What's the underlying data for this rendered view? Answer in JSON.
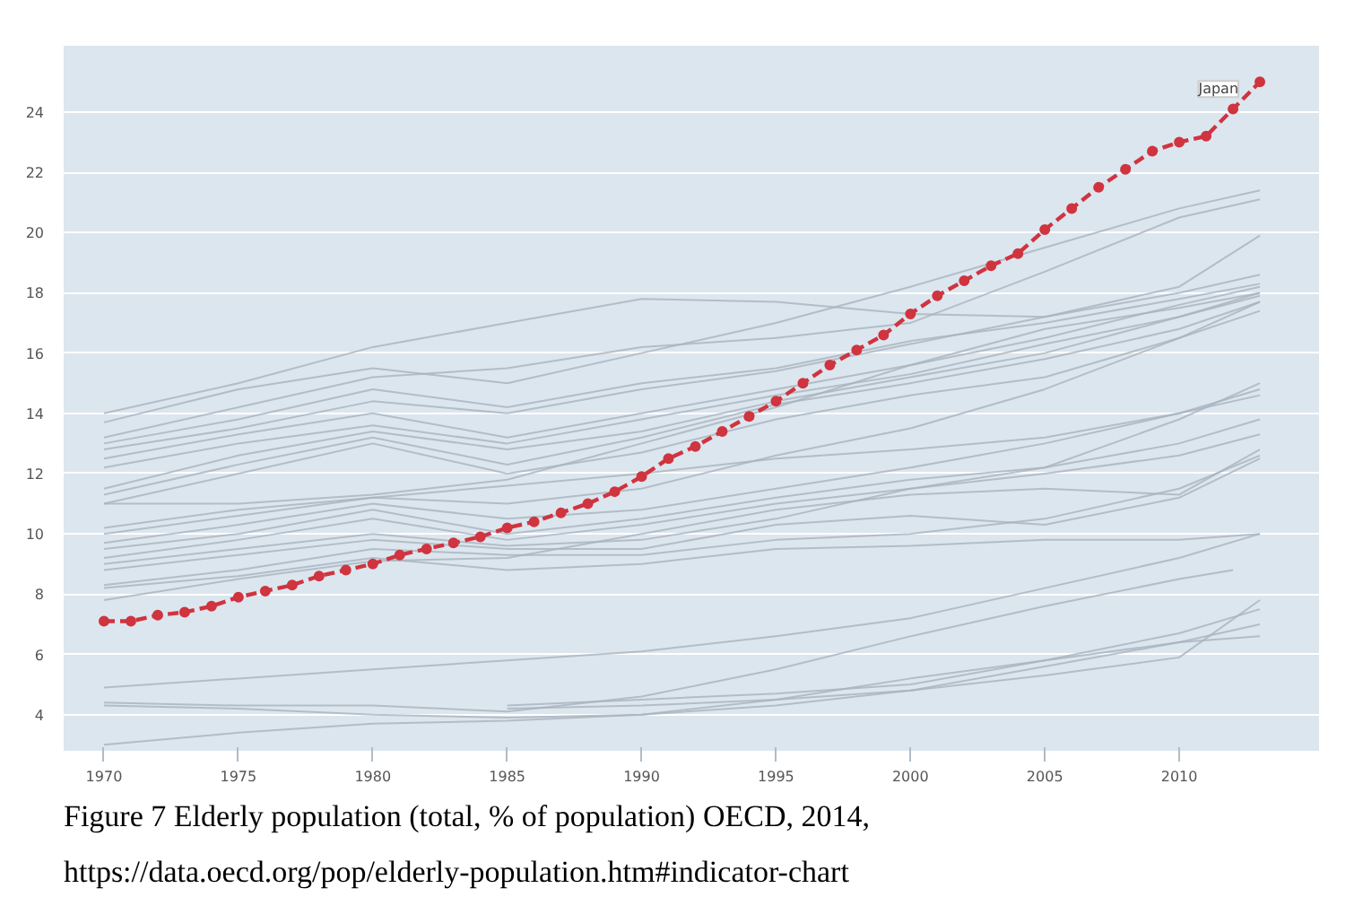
{
  "chart_data": {
    "type": "line",
    "xlim": [
      1968.5,
      2015.2
    ],
    "ylim": [
      2.8,
      26.2
    ],
    "xticks": [
      1970,
      1975,
      1980,
      1985,
      1990,
      1995,
      2000,
      2005,
      2010
    ],
    "yticks": [
      4,
      6,
      8,
      10,
      12,
      14,
      16,
      18,
      20,
      22,
      24
    ],
    "grid": "y",
    "annotations": [
      "Figure 7 Elderly population (total, % of population) OECD, 2014, https://data.oecd.org/pop/elderly-population.htm#indicator-chart"
    ],
    "series": [
      {
        "color": "#a7b3bd",
        "x": [
          1970,
          1975,
          1980,
          1985,
          1990,
          1995,
          2000,
          2005,
          2010,
          2013
        ],
        "values": [
          14.0,
          15.0,
          16.2,
          17.0,
          17.8,
          17.7,
          17.3,
          17.2,
          18.2,
          19.9
        ]
      },
      {
        "color": "#a7b3bd",
        "x": [
          1970,
          1975,
          1980,
          1985,
          1990,
          1995,
          2000,
          2005,
          2010,
          2013
        ],
        "values": [
          13.7,
          14.8,
          15.5,
          15.0,
          16.0,
          17.0,
          18.2,
          19.5,
          20.8,
          21.4
        ]
      },
      {
        "color": "#a7b3bd",
        "x": [
          1970,
          1975,
          1980,
          1985,
          1990,
          1995,
          2000,
          2005,
          2010,
          2013
        ],
        "values": [
          13.2,
          14.2,
          15.2,
          15.5,
          16.2,
          16.5,
          17.0,
          18.7,
          20.5,
          21.1
        ]
      },
      {
        "color": "#a7b3bd",
        "x": [
          1970,
          1975,
          1980,
          1985,
          1990,
          1995,
          2000,
          2005,
          2010,
          2013
        ],
        "values": [
          13.0,
          13.8,
          14.8,
          14.2,
          15.0,
          15.5,
          16.4,
          17.0,
          17.8,
          18.3
        ]
      },
      {
        "color": "#a7b3bd",
        "x": [
          1970,
          1975,
          1980,
          1985,
          1990,
          1995,
          2000,
          2005,
          2010,
          2013
        ],
        "values": [
          12.8,
          13.5,
          14.4,
          14.0,
          14.8,
          15.4,
          16.3,
          17.2,
          18.0,
          18.6
        ]
      },
      {
        "color": "#a7b3bd",
        "x": [
          1970,
          1975,
          1980,
          1985,
          1990,
          1995,
          2000,
          2005,
          2010,
          2013
        ],
        "values": [
          12.5,
          13.3,
          14.0,
          13.2,
          14.0,
          14.8,
          15.6,
          16.5,
          17.6,
          18.2
        ]
      },
      {
        "color": "#a7b3bd",
        "x": [
          1970,
          1975,
          1980,
          1985,
          1990,
          1995,
          2000,
          2005,
          2010,
          2013
        ],
        "values": [
          12.2,
          13.0,
          13.6,
          13.0,
          13.8,
          14.6,
          15.3,
          16.3,
          17.2,
          17.9
        ]
      },
      {
        "color": "#a7b3bd",
        "x": [
          1970,
          1975,
          1980,
          1985,
          1990,
          1995,
          2000,
          2005,
          2010,
          2013
        ],
        "values": [
          11.5,
          12.6,
          13.4,
          12.8,
          13.4,
          14.4,
          15.2,
          16.0,
          17.2,
          18.0
        ]
      },
      {
        "color": "#a7b3bd",
        "x": [
          1970,
          1975,
          1980,
          1985,
          1990,
          1995,
          2000,
          2005,
          2010,
          2013
        ],
        "values": [
          11.3,
          12.3,
          13.2,
          12.3,
          13.2,
          14.3,
          15.0,
          15.8,
          16.8,
          17.7
        ]
      },
      {
        "color": "#a7b3bd",
        "x": [
          1970,
          1975,
          1980,
          1985,
          1990,
          1995,
          2000,
          2005,
          2010,
          2013
        ],
        "values": [
          11.0,
          12.0,
          13.0,
          12.0,
          12.7,
          13.8,
          14.6,
          15.2,
          16.5,
          17.4
        ]
      },
      {
        "color": "#a7b3bd",
        "x": [
          1970,
          1975,
          1980,
          1985,
          1990,
          1995,
          2000,
          2005,
          2010,
          2013
        ],
        "values": [
          11.0,
          11.0,
          11.3,
          11.8,
          13.0,
          14.2,
          15.6,
          16.8,
          17.5,
          18.0
        ]
      },
      {
        "color": "#a7b3bd",
        "x": [
          1970,
          1975,
          1980,
          1985,
          1990,
          1995,
          2000,
          2005,
          2010,
          2013
        ],
        "values": [
          10.2,
          10.8,
          11.2,
          11.6,
          12.0,
          12.5,
          12.8,
          13.2,
          14.0,
          14.6
        ]
      },
      {
        "color": "#a7b3bd",
        "x": [
          1970,
          1975,
          1980,
          1985,
          1990,
          1995,
          2000,
          2005,
          2010,
          2013
        ],
        "values": [
          10.0,
          10.6,
          11.2,
          11.0,
          11.5,
          12.6,
          13.5,
          14.8,
          16.5,
          17.7
        ]
      },
      {
        "color": "#a7b3bd",
        "x": [
          1970,
          1975,
          1980,
          1985,
          1990,
          1995,
          2000,
          2005,
          2010,
          2013
        ],
        "values": [
          9.7,
          10.3,
          11.0,
          10.5,
          10.8,
          11.5,
          12.2,
          13.0,
          14.0,
          14.8
        ]
      },
      {
        "color": "#a7b3bd",
        "x": [
          1970,
          1975,
          1980,
          1985,
          1990,
          1995,
          2000,
          2005,
          2010,
          2013
        ],
        "values": [
          9.5,
          10.0,
          10.8,
          10.0,
          10.5,
          11.2,
          11.8,
          12.2,
          13.8,
          15.0
        ]
      },
      {
        "color": "#a7b3bd",
        "x": [
          1970,
          1975,
          1980,
          1985,
          1990,
          1995,
          2000,
          2005,
          2010,
          2013
        ],
        "values": [
          9.2,
          9.8,
          10.5,
          9.8,
          10.3,
          11.0,
          11.5,
          12.0,
          12.6,
          13.3
        ]
      },
      {
        "color": "#a7b3bd",
        "x": [
          1970,
          1975,
          1980,
          1985,
          1990,
          1995,
          2000,
          2005,
          2010,
          2013
        ],
        "values": [
          9.0,
          9.5,
          10.0,
          9.6,
          9.8,
          10.5,
          11.5,
          12.2,
          13.0,
          13.8
        ]
      },
      {
        "color": "#a7b3bd",
        "x": [
          1970,
          1975,
          1980,
          1985,
          1990,
          1995,
          2000,
          2005,
          2010,
          2013
        ],
        "values": [
          8.8,
          9.3,
          9.8,
          9.5,
          9.5,
          10.3,
          10.6,
          10.3,
          11.2,
          12.5
        ]
      },
      {
        "color": "#a7b3bd",
        "x": [
          1970,
          1975,
          1980,
          1985,
          1990,
          1995,
          2000,
          2005,
          2010,
          2013
        ],
        "values": [
          8.3,
          8.8,
          9.5,
          9.3,
          9.3,
          9.8,
          10.0,
          10.5,
          11.5,
          12.6
        ]
      },
      {
        "color": "#a7b3bd",
        "x": [
          1970,
          1975,
          1980,
          1985,
          1990,
          1995,
          2000,
          2005,
          2010,
          2013
        ],
        "values": [
          8.2,
          8.6,
          9.2,
          8.8,
          9.0,
          9.5,
          9.6,
          9.8,
          9.8,
          10.0
        ]
      },
      {
        "color": "#a7b3bd",
        "x": [
          1970,
          1975,
          1980,
          1985,
          1990,
          1995,
          2000,
          2005,
          2010,
          2013
        ],
        "values": [
          7.8,
          8.5,
          9.1,
          9.2,
          10.0,
          10.8,
          11.3,
          11.5,
          11.3,
          12.8
        ]
      },
      {
        "color": "#a7b3bd",
        "x": [
          1970,
          1975,
          1980,
          1985,
          1990,
          1995,
          2000,
          2005,
          2010,
          2013
        ],
        "values": [
          4.9,
          5.2,
          5.5,
          5.8,
          6.1,
          6.6,
          7.2,
          8.2,
          9.2,
          10.0
        ]
      },
      {
        "color": "#a7b3bd",
        "x": [
          1970,
          1975,
          1980,
          1985,
          1990,
          1995,
          2000,
          2005,
          2010,
          2012
        ],
        "values": [
          4.4,
          4.3,
          4.3,
          4.1,
          4.6,
          5.5,
          6.6,
          7.6,
          8.5,
          8.8
        ]
      },
      {
        "color": "#a7b3bd",
        "x": [
          1970,
          1975,
          1980,
          1985,
          1990,
          1995,
          2000,
          2005,
          2010,
          2013
        ],
        "values": [
          4.3,
          4.2,
          4.0,
          3.9,
          4.0,
          4.3,
          4.8,
          5.6,
          6.4,
          6.6
        ]
      },
      {
        "color": "#a7b3bd",
        "x": [
          1970,
          1975,
          1980,
          1985,
          1990,
          1995,
          2000,
          2005,
          2010,
          2013
        ],
        "values": [
          3.0,
          3.4,
          3.7,
          3.8,
          4.0,
          4.5,
          5.2,
          5.8,
          6.4,
          7.0
        ]
      },
      {
        "color": "#a7b3bd",
        "x": [
          1985,
          1990,
          1995,
          2000,
          2005,
          2010,
          2013
        ],
        "values": [
          4.3,
          4.5,
          4.7,
          5.0,
          5.8,
          6.7,
          7.5
        ]
      },
      {
        "color": "#a7b3bd",
        "x": [
          1985,
          1990,
          1995,
          2000,
          2005,
          2010,
          2013
        ],
        "values": [
          4.2,
          4.3,
          4.5,
          4.8,
          5.3,
          5.9,
          7.8
        ]
      },
      {
        "name": "Japan",
        "color": "#d0343f",
        "marker": "circle",
        "line_style": "dashed",
        "x": [
          1970,
          1971,
          1972,
          1973,
          1974,
          1975,
          1976,
          1977,
          1978,
          1979,
          1980,
          1981,
          1982,
          1983,
          1984,
          1985,
          1986,
          1987,
          1988,
          1989,
          1990,
          1991,
          1992,
          1993,
          1994,
          1995,
          1996,
          1997,
          1998,
          1999,
          2000,
          2001,
          2002,
          2003,
          2004,
          2005,
          2006,
          2007,
          2008,
          2009,
          2010,
          2011,
          2012,
          2013
        ],
        "values": [
          7.1,
          7.1,
          7.3,
          7.4,
          7.6,
          7.9,
          8.1,
          8.3,
          8.6,
          8.8,
          9.0,
          9.3,
          9.5,
          9.7,
          9.9,
          10.2,
          10.4,
          10.7,
          11.0,
          11.4,
          11.9,
          12.5,
          12.9,
          13.4,
          13.9,
          14.4,
          15.0,
          15.6,
          16.1,
          16.6,
          17.3,
          17.9,
          18.4,
          18.9,
          19.3,
          20.1,
          20.8,
          21.5,
          22.1,
          22.7,
          23.0,
          23.2,
          24.1,
          25.0
        ]
      }
    ]
  }
}
